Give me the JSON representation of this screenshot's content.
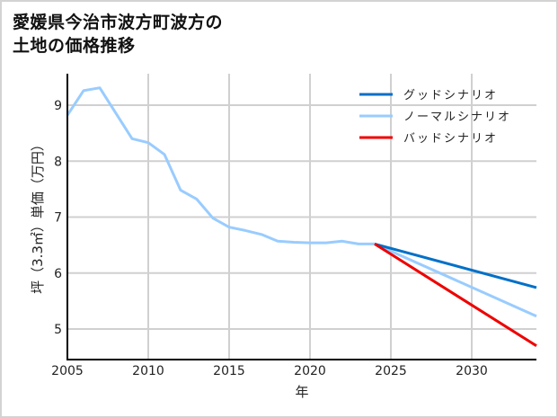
{
  "title_line1": "愛媛県今治市波方町波方の",
  "title_line2": "土地の価格推移",
  "chart_data": {
    "type": "line",
    "title": "愛媛県今治市波方町波方の土地の価格推移",
    "xlabel": "年",
    "ylabel": "坪（3.3㎡）単価（万円）",
    "xlim": [
      2005,
      2034
    ],
    "ylim": [
      4.45,
      9.55
    ],
    "x_ticks": [
      2005,
      2010,
      2015,
      2020,
      2025,
      2030
    ],
    "y_ticks": [
      5,
      6,
      7,
      8,
      9
    ],
    "grid": true,
    "legend_position": "upper right",
    "series": [
      {
        "name": "グッドシナリオ",
        "color": "#0070c8",
        "x": [
          2024,
          2034
        ],
        "values": [
          6.52,
          5.74
        ]
      },
      {
        "name": "ノーマルシナリオ",
        "color": "#99ccff",
        "x": [
          2005,
          2006,
          2007,
          2009,
          2010,
          2011,
          2012,
          2013,
          2014,
          2015,
          2016,
          2017,
          2018,
          2019,
          2020,
          2021,
          2022,
          2023,
          2024,
          2034
        ],
        "values": [
          8.82,
          9.26,
          9.31,
          8.4,
          8.33,
          8.12,
          7.48,
          7.32,
          6.98,
          6.82,
          6.76,
          6.69,
          6.57,
          6.55,
          6.54,
          6.54,
          6.57,
          6.52,
          6.52,
          5.23
        ]
      },
      {
        "name": "バッドシナリオ",
        "color": "#ee0000",
        "x": [
          2024,
          2034
        ],
        "values": [
          6.52,
          4.7
        ]
      }
    ]
  }
}
